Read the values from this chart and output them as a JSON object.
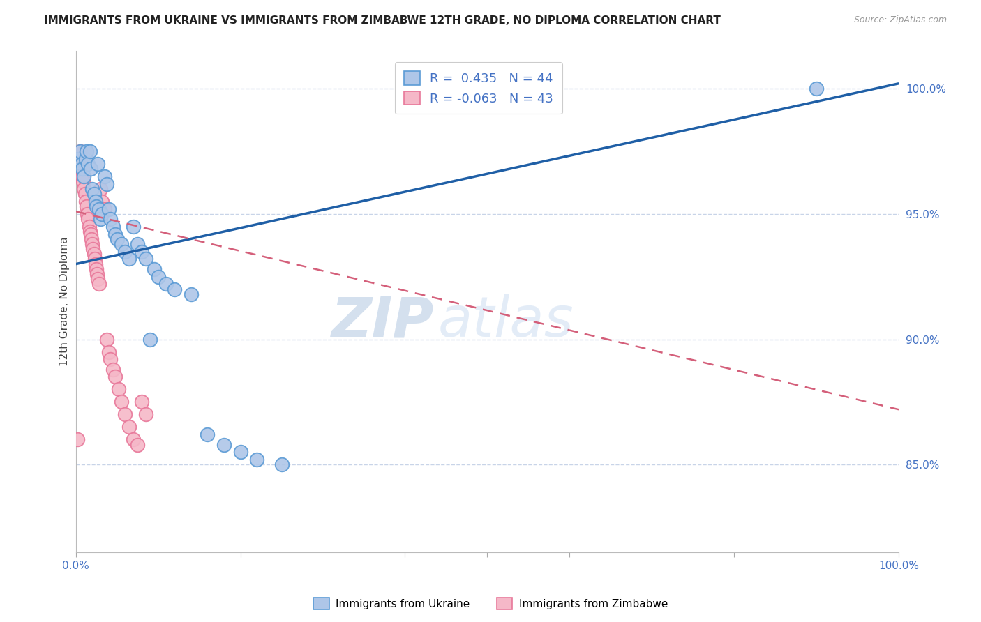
{
  "title": "IMMIGRANTS FROM UKRAINE VS IMMIGRANTS FROM ZIMBABWE 12TH GRADE, NO DIPLOMA CORRELATION CHART",
  "source": "Source: ZipAtlas.com",
  "ylabel": "12th Grade, No Diploma",
  "legend_ukraine": "Immigrants from Ukraine",
  "legend_zimbabwe": "Immigrants from Zimbabwe",
  "r_ukraine": 0.435,
  "n_ukraine": 44,
  "r_zimbabwe": -0.063,
  "n_zimbabwe": 43,
  "ukraine_color": "#aec6e8",
  "zimbabwe_color": "#f5b8c8",
  "ukraine_edge_color": "#5b9bd5",
  "zimbabwe_edge_color": "#e8789a",
  "ukraine_line_color": "#1f5fa6",
  "zimbabwe_line_color": "#d45f7a",
  "ukraine_line_y0": 0.93,
  "ukraine_line_y1": 1.002,
  "zimbabwe_line_y0": 0.951,
  "zimbabwe_line_y1": 0.872,
  "xlim": [
    0.0,
    1.0
  ],
  "ylim": [
    0.815,
    1.015
  ],
  "yticks": [
    0.85,
    0.9,
    0.95,
    1.0
  ],
  "ytick_labels": [
    "85.0%",
    "90.0%",
    "95.0%",
    "100.0%"
  ],
  "watermark_zip": "ZIP",
  "watermark_atlas": "atlas",
  "background_color": "#ffffff",
  "grid_color": "#c8d4e8",
  "ukraine_pts_x": [
    0.003,
    0.005,
    0.007,
    0.008,
    0.01,
    0.012,
    0.013,
    0.015,
    0.017,
    0.018,
    0.02,
    0.022,
    0.024,
    0.025,
    0.027,
    0.028,
    0.03,
    0.032,
    0.035,
    0.038,
    0.04,
    0.042,
    0.045,
    0.048,
    0.05,
    0.055,
    0.06,
    0.065,
    0.07,
    0.075,
    0.08,
    0.085,
    0.09,
    0.095,
    0.1,
    0.11,
    0.12,
    0.14,
    0.16,
    0.18,
    0.2,
    0.22,
    0.25,
    0.9
  ],
  "ukraine_pts_y": [
    0.972,
    0.975,
    0.97,
    0.968,
    0.965,
    0.972,
    0.975,
    0.97,
    0.975,
    0.968,
    0.96,
    0.958,
    0.955,
    0.953,
    0.97,
    0.952,
    0.948,
    0.95,
    0.965,
    0.962,
    0.952,
    0.948,
    0.945,
    0.942,
    0.94,
    0.938,
    0.935,
    0.932,
    0.945,
    0.938,
    0.935,
    0.932,
    0.9,
    0.928,
    0.925,
    0.922,
    0.92,
    0.918,
    0.862,
    0.858,
    0.855,
    0.852,
    0.85,
    1.0
  ],
  "zimbabwe_pts_x": [
    0.002,
    0.003,
    0.004,
    0.005,
    0.006,
    0.007,
    0.008,
    0.009,
    0.01,
    0.011,
    0.012,
    0.013,
    0.014,
    0.015,
    0.016,
    0.017,
    0.018,
    0.019,
    0.02,
    0.021,
    0.022,
    0.023,
    0.024,
    0.025,
    0.026,
    0.027,
    0.028,
    0.03,
    0.032,
    0.035,
    0.038,
    0.04,
    0.042,
    0.045,
    0.048,
    0.052,
    0.055,
    0.06,
    0.065,
    0.07,
    0.075,
    0.08,
    0.085
  ],
  "zimbabwe_pts_y": [
    0.86,
    0.972,
    0.968,
    0.975,
    0.97,
    0.968,
    0.965,
    0.963,
    0.96,
    0.958,
    0.955,
    0.953,
    0.95,
    0.948,
    0.945,
    0.943,
    0.942,
    0.94,
    0.938,
    0.936,
    0.934,
    0.932,
    0.93,
    0.928,
    0.926,
    0.924,
    0.922,
    0.96,
    0.955,
    0.952,
    0.9,
    0.895,
    0.892,
    0.888,
    0.885,
    0.88,
    0.875,
    0.87,
    0.865,
    0.86,
    0.858,
    0.875,
    0.87
  ]
}
